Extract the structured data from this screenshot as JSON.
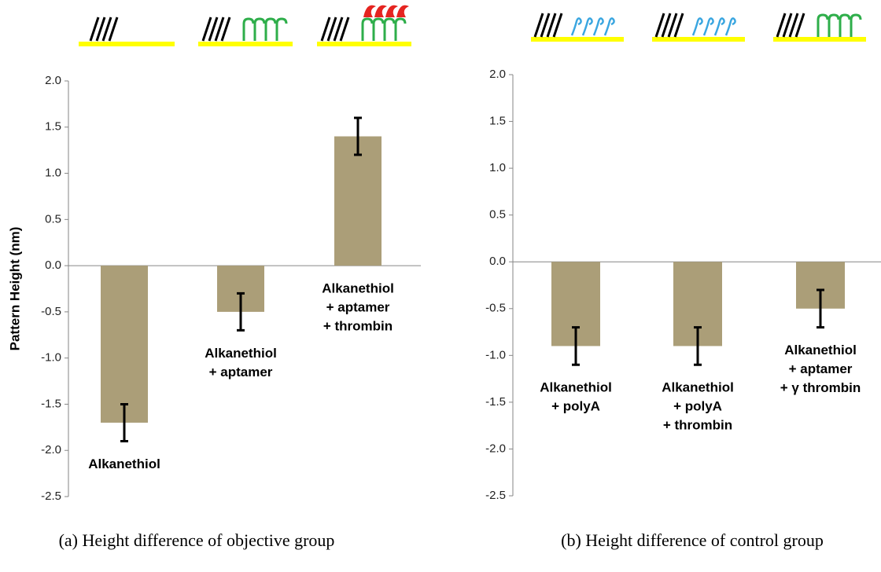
{
  "chart_data": [
    {
      "type": "bar",
      "y_label": "Pattern Height (nm)",
      "caption": "(a) Height difference of objective group",
      "categories": [
        [
          "Alkanethiol"
        ],
        [
          "Alkanethiol",
          "+ aptamer"
        ],
        [
          "Alkanethiol",
          "+ aptamer",
          "+ thrombin"
        ]
      ],
      "values": [
        -1.7,
        -0.5,
        1.4
      ],
      "errors": [
        0.2,
        0.2,
        0.2
      ],
      "color": "#ab9e78",
      "ylim": [
        -2.5,
        2.0
      ],
      "yticks": [
        -2.5,
        {
          "value": -2,
          "label": "-2.0"
        },
        -1.5,
        {
          "value": -1,
          "label": "-1.0"
        },
        -0.5,
        {
          "value": 0,
          "label": "0.0"
        },
        0.5,
        {
          "value": 1,
          "label": "1.0"
        },
        1.5,
        {
          "value": 2,
          "label": "2.0"
        }
      ]
    },
    {
      "type": "bar",
      "caption": "(b) Height difference of control group",
      "categories": [
        [
          "Alkanethiol",
          "+ polyA"
        ],
        [
          "Alkanethiol",
          "+ polyA",
          "+ thrombin"
        ],
        [
          "Alkanethiol",
          "+ aptamer",
          "+ γ thrombin"
        ]
      ],
      "values": [
        -0.9,
        -0.9,
        -0.5
      ],
      "errors": [
        0.2,
        0.2,
        0.2
      ],
      "color": "#ab9e78",
      "ylim": [
        -2.5,
        2.0
      ],
      "yticks": [
        -2.5,
        {
          "value": -2,
          "label": "-2.0"
        },
        -1.5,
        {
          "value": -1,
          "label": "-1.0"
        },
        -0.5,
        {
          "value": 0,
          "label": "0.0"
        },
        0.5,
        {
          "value": 1,
          "label": "1.0"
        },
        1.5,
        {
          "value": 2,
          "label": "2.0"
        }
      ]
    }
  ]
}
